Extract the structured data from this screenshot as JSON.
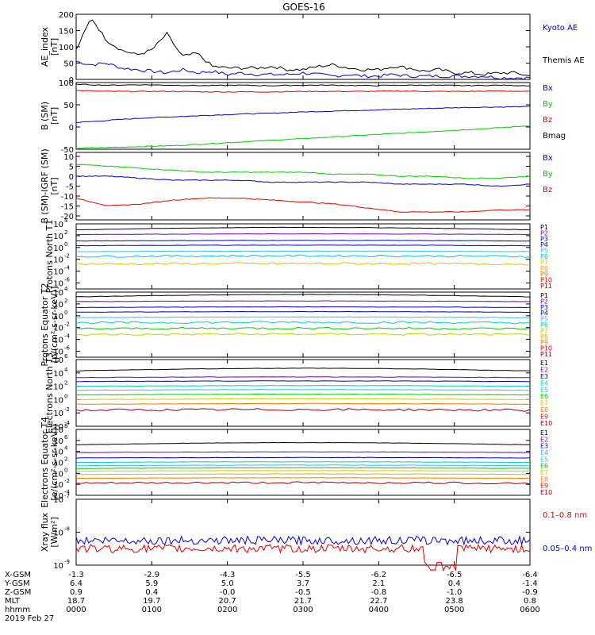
{
  "title": "GOES-16",
  "colors": {
    "black": "#000000",
    "blue": "#0000cc",
    "green": "#00cc00",
    "red": "#dd0000",
    "navy": "#000080",
    "purple": "#7a00b0",
    "cyan": "#00cccc",
    "lightblue": "#33bbff",
    "yellow": "#cccc00",
    "gold": "#e0b000",
    "orange": "#ff7700",
    "darkred": "#990000"
  },
  "chart_data": [
    {
      "type": "line",
      "ylabel": "AE_index [nT]",
      "ylim": [
        0,
        200
      ],
      "yticks": [
        "200",
        "150",
        "100",
        "50",
        "0"
      ],
      "series": [
        {
          "name": "Kyoto AE",
          "color": "#0000cc",
          "values": [
            55,
            45,
            50,
            35,
            30,
            25,
            20,
            30,
            20,
            25,
            15,
            20,
            15,
            15,
            15,
            20,
            15,
            10,
            15,
            10,
            10,
            15,
            10,
            10,
            10,
            10,
            10,
            10,
            5,
            5,
            5
          ]
        },
        {
          "name": "Themis AE",
          "color": "#000000",
          "values": [
            90,
            190,
            120,
            90,
            75,
            90,
            140,
            70,
            80,
            40,
            35,
            35,
            35,
            40,
            30,
            30,
            40,
            45,
            35,
            30,
            30,
            40,
            35,
            25,
            30,
            20,
            20,
            15,
            20,
            20,
            10
          ]
        }
      ]
    },
    {
      "type": "line",
      "ylabel": "B (SM) [nT]",
      "ylim": [
        -50,
        100
      ],
      "yticks": [
        "100",
        "50",
        "0",
        "-50"
      ],
      "series": [
        {
          "name": "Bx",
          "color": "#0000cc",
          "values": [
            10,
            15,
            20,
            23,
            26,
            29,
            31,
            34,
            36,
            38,
            40,
            42,
            44,
            45,
            46
          ]
        },
        {
          "name": "By",
          "color": "#00cc00",
          "values": [
            -48,
            -46,
            -44,
            -42,
            -38,
            -34,
            -30,
            -26,
            -22,
            -18,
            -14,
            -10,
            -6,
            -2,
            3
          ]
        },
        {
          "name": "Bz",
          "color": "#dd0000",
          "values": [
            82,
            80,
            80,
            80,
            79,
            79,
            79,
            80,
            80,
            80,
            81,
            80,
            80,
            81,
            80
          ]
        },
        {
          "name": "Bmag",
          "color": "#000000",
          "values": [
            96,
            94,
            95,
            94,
            93,
            94,
            93,
            94,
            94,
            93,
            94,
            94,
            93,
            94,
            93
          ]
        }
      ]
    },
    {
      "type": "line",
      "ylabel": "B (SM)-IGRF (SM) [nT]",
      "ylim": [
        -22,
        12
      ],
      "yticks": [
        "10",
        "5",
        "0",
        "-5",
        "-10",
        "-15",
        "-20"
      ],
      "series": [
        {
          "name": "Bx",
          "color": "#0000cc",
          "values": [
            0,
            0,
            -1,
            -2,
            -2,
            -2,
            -3,
            -3,
            -3,
            -3,
            -4,
            -4,
            -4,
            -5,
            -4
          ]
        },
        {
          "name": "By",
          "color": "#00cc00",
          "values": [
            6,
            5,
            4,
            3,
            2,
            2,
            2,
            2,
            1,
            1,
            0,
            0,
            -1,
            -1,
            0
          ]
        },
        {
          "name": "Bz",
          "color": "#dd0000",
          "values": [
            -11,
            -15,
            -14,
            -12,
            -11,
            -11,
            -12,
            -13,
            -14,
            -16,
            -18,
            -18,
            -18,
            -17,
            -17
          ]
        }
      ]
    },
    {
      "type": "line",
      "ylabel": "Protons North T1",
      "log": true,
      "ylim_exp": [
        -7,
        4
      ],
      "ytick_exps": [
        4,
        2,
        0,
        -2,
        -4,
        -6
      ],
      "ytick_labels": [
        "10",
        "10",
        "10",
        "10",
        "10",
        "10"
      ],
      "ytick_powers": [
        "4",
        "2",
        "0",
        "-2",
        "-4",
        "-6"
      ],
      "legend": [
        "P1",
        "P2",
        "P3",
        "P4",
        "P5",
        "P6",
        "P7",
        "P8",
        "P9",
        "P10",
        "P11"
      ],
      "legend_colors": [
        "#000000",
        "#7a00b0",
        "#0000cc",
        "#0000cc",
        "#33bbff",
        "#00cccc",
        "#cccc00",
        "#e0b000",
        "#ff7700",
        "#dd0000",
        "#990000"
      ],
      "series_levels": [
        3.0,
        2.2,
        1.1,
        0.3,
        -0.7,
        -1.5,
        -2.8
      ],
      "series_colors": [
        "#000000",
        "#7a00b0",
        "#0000cc",
        "#0000cc",
        "#33bbff",
        "#00cccc",
        "#cccc00"
      ]
    },
    {
      "type": "line",
      "ylabel": "Protons Equator T2 [p/(cm²-s-sr-keV)]",
      "log": true,
      "ylim_exp": [
        -7,
        4
      ],
      "ytick_exps": [
        4,
        2,
        0,
        -2,
        -4,
        -6
      ],
      "ytick_labels": [
        "10",
        "10",
        "10",
        "10",
        "10",
        "10"
      ],
      "ytick_powers": [
        "4",
        "2",
        "0",
        "-2",
        "-4",
        "-6"
      ],
      "legend": [
        "P1",
        "P2",
        "P3",
        "P4",
        "P5",
        "P6",
        "P7",
        "P8",
        "P9",
        "P10",
        "P11"
      ],
      "legend_colors": [
        "#000000",
        "#7a00b0",
        "#0000cc",
        "#0000cc",
        "#33bbff",
        "#00cccc",
        "#cccc00",
        "#e0b000",
        "#ff7700",
        "#dd0000",
        "#990000"
      ],
      "series_levels": [
        3.2,
        2.4,
        1.4,
        0.6,
        -0.3,
        -1.2,
        -2.2,
        -3.2
      ],
      "series_colors": [
        "#000000",
        "#7a00b0",
        "#0000cc",
        "#0000cc",
        "#33bbff",
        "#00cccc",
        "#00cc00",
        "#cccc00"
      ]
    },
    {
      "type": "line",
      "ylabel": "Electrons North T3",
      "log": true,
      "ylim_exp": [
        -4,
        6
      ],
      "ytick_exps": [
        6,
        4,
        2,
        0,
        -2,
        -4
      ],
      "ytick_labels": [
        "10",
        "10",
        "10",
        "10",
        "10",
        "10"
      ],
      "ytick_powers": [
        "6",
        "4",
        "2",
        "0",
        "-2",
        "-4"
      ],
      "legend": [
        "E1",
        "E2",
        "E3",
        "E4",
        "E5",
        "E6",
        "E7",
        "E8",
        "E9",
        "E10"
      ],
      "legend_colors": [
        "#000000",
        "#7a00b0",
        "#0000cc",
        "#00cccc",
        "#33bbff",
        "#00cc00",
        "#cccc00",
        "#ff7700",
        "#dd0000",
        "#990000"
      ],
      "series_levels": [
        4.3,
        3.3,
        2.7,
        2.0,
        1.4,
        0.7,
        0.0,
        -0.7,
        -1.6
      ],
      "series_colors": [
        "#000000",
        "#7a00b0",
        "#0000cc",
        "#00cccc",
        "#33bbff",
        "#00cc00",
        "#cccc00",
        "#ff7700",
        "#990000"
      ]
    },
    {
      "type": "line",
      "ylabel": "Electrons Equator T4 [e/(cm²-s-sr-keV)]",
      "log": true,
      "ylim_exp": [
        -4,
        8
      ],
      "ytick_exps": [
        8,
        6,
        4,
        2,
        0,
        -2,
        -4
      ],
      "ytick_labels": [
        "10",
        "10",
        "10",
        "10",
        "10",
        "10",
        "10"
      ],
      "ytick_powers": [
        "8",
        "6",
        "4",
        "2",
        "0",
        "-2",
        "-4"
      ],
      "legend": [
        "E1",
        "E2",
        "E3",
        "E4",
        "E5",
        "E6",
        "E7",
        "E8",
        "E9",
        "E10"
      ],
      "legend_colors": [
        "#000000",
        "#7a00b0",
        "#0000cc",
        "#00cccc",
        "#33bbff",
        "#00cc00",
        "#cccc00",
        "#ff7700",
        "#dd0000",
        "#990000"
      ],
      "series_levels": [
        5.2,
        3.8,
        2.8,
        2.0,
        1.4,
        0.9,
        0.4,
        -0.2,
        -0.9,
        -1.8
      ],
      "series_colors": [
        "#000000",
        "#7a00b0",
        "#0000cc",
        "#00cccc",
        "#33bbff",
        "#00cc00",
        "#cccc00",
        "#e0b000",
        "#ff7700",
        "#990000"
      ]
    },
    {
      "type": "line",
      "ylabel": "Xray flux [W/m²]",
      "log": true,
      "ylim_exp": [
        -9,
        -7
      ],
      "ytick_exps": [
        -7,
        -8,
        -9
      ],
      "ytick_labels": [
        "10",
        "10",
        "10"
      ],
      "ytick_powers": [
        "-7",
        "-8",
        "-9"
      ],
      "series": [
        {
          "name": "0.1–0.8 nm",
          "color": "#dd0000",
          "level": -8.5
        },
        {
          "name": "0.05–0.4 nm",
          "color": "#0000cc",
          "level": -8.25
        }
      ]
    }
  ],
  "xaxis": {
    "rows": [
      {
        "label": "X-GSM",
        "values": [
          "-1.3",
          "-2.9",
          "-4.3",
          "-5.5",
          "-6.2",
          "-6.5",
          "-6.4"
        ]
      },
      {
        "label": "Y-GSM",
        "values": [
          "6.4",
          "5.9",
          "5.0",
          "3.7",
          "2.1",
          "0.4",
          "-1.4"
        ]
      },
      {
        "label": "Z-GSM",
        "values": [
          "0.9",
          "0.4",
          "-0.0",
          "-0.5",
          "-0.8",
          "-1.0",
          "-0.9"
        ]
      },
      {
        "label": "MLT",
        "values": [
          "18.7",
          "19.7",
          "20.7",
          "21.7",
          "22.7",
          "23.8",
          "0.8"
        ]
      },
      {
        "label": "hhmm",
        "values": [
          "0000",
          "0100",
          "0200",
          "0300",
          "0400",
          "0500",
          "0600"
        ]
      }
    ],
    "date": "2019 Feb 27"
  }
}
